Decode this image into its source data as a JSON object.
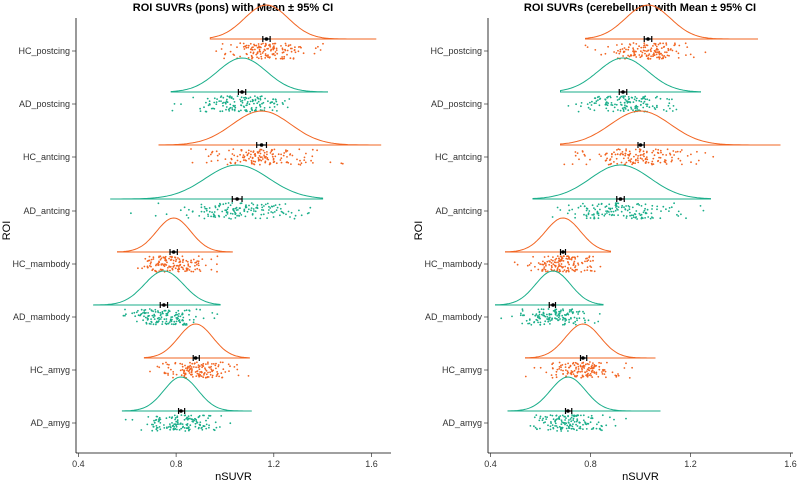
{
  "colors": {
    "HC": "#F26522",
    "AD": "#1AAE8A",
    "mean": "#000000"
  },
  "chart_data": [
    {
      "type": "raincloud",
      "title": "ROI SUVRs (pons) with Mean ± 95% CI",
      "xlabel": "nSUVR",
      "ylabel": "ROI",
      "xlim": [
        0.39,
        1.68
      ],
      "xticks": [
        0.4,
        0.8,
        1.2,
        1.6
      ],
      "xtick_labels": [
        "0.4",
        "0.8",
        "1.2",
        "1.6"
      ],
      "categories": [
        "HC_postcing",
        "AD_postcing",
        "HC_antcing",
        "AD_antcing",
        "HC_mambody",
        "AD_mambody",
        "HC_amyg",
        "AD_amyg"
      ],
      "groups": [
        "HC",
        "AD",
        "HC",
        "AD",
        "HC",
        "AD",
        "HC",
        "AD"
      ],
      "series": [
        {
          "name": "HC_postcing",
          "mean": 1.17,
          "ci": [
            1.155,
            1.185
          ],
          "sd": 0.09,
          "range": [
            0.94,
            1.62
          ]
        },
        {
          "name": "AD_postcing",
          "mean": 1.07,
          "ci": [
            1.055,
            1.085
          ],
          "sd": 0.1,
          "range": [
            0.78,
            1.42
          ]
        },
        {
          "name": "HC_antcing",
          "mean": 1.15,
          "ci": [
            1.13,
            1.17
          ],
          "sd": 0.12,
          "range": [
            0.73,
            1.64
          ]
        },
        {
          "name": "AD_antcing",
          "mean": 1.05,
          "ci": [
            1.03,
            1.07
          ],
          "sd": 0.13,
          "range": [
            0.53,
            1.4
          ]
        },
        {
          "name": "HC_mambody",
          "mean": 0.79,
          "ci": [
            0.775,
            0.805
          ],
          "sd": 0.07,
          "range": [
            0.56,
            1.03
          ]
        },
        {
          "name": "AD_mambody",
          "mean": 0.75,
          "ci": [
            0.735,
            0.765
          ],
          "sd": 0.08,
          "range": [
            0.46,
            0.98
          ]
        },
        {
          "name": "HC_amyg",
          "mean": 0.88,
          "ci": [
            0.87,
            0.895
          ],
          "sd": 0.07,
          "range": [
            0.67,
            1.1
          ]
        },
        {
          "name": "AD_amyg",
          "mean": 0.82,
          "ci": [
            0.81,
            0.835
          ],
          "sd": 0.07,
          "range": [
            0.58,
            1.11
          ]
        }
      ]
    },
    {
      "type": "raincloud",
      "title": "ROI SUVRs (cerebellum) with Mean ± 95% CI",
      "xlabel": "nSUVR",
      "ylabel": "ROI",
      "xlim": [
        0.39,
        1.61
      ],
      "xticks": [
        0.4,
        0.8,
        1.2,
        1.6
      ],
      "xtick_labels": [
        "0.4",
        "0.8",
        "1.2",
        "1.6"
      ],
      "categories": [
        "HC_postcing",
        "AD_postcing",
        "HC_antcing",
        "AD_antcing",
        "HC_mambody",
        "AD_mambody",
        "HC_amyg",
        "AD_amyg"
      ],
      "groups": [
        "HC",
        "AD",
        "HC",
        "AD",
        "HC",
        "AD",
        "HC",
        "AD"
      ],
      "series": [
        {
          "name": "HC_postcing",
          "mean": 1.03,
          "ci": [
            1.015,
            1.045
          ],
          "sd": 0.09,
          "range": [
            0.78,
            1.47
          ]
        },
        {
          "name": "AD_postcing",
          "mean": 0.93,
          "ci": [
            0.915,
            0.945
          ],
          "sd": 0.1,
          "range": [
            0.68,
            1.24
          ]
        },
        {
          "name": "HC_antcing",
          "mean": 1.0,
          "ci": [
            0.99,
            1.015
          ],
          "sd": 0.12,
          "range": [
            0.68,
            1.56
          ]
        },
        {
          "name": "AD_antcing",
          "mean": 0.92,
          "ci": [
            0.905,
            0.935
          ],
          "sd": 0.12,
          "range": [
            0.57,
            1.28
          ]
        },
        {
          "name": "HC_mambody",
          "mean": 0.69,
          "ci": [
            0.68,
            0.7
          ],
          "sd": 0.07,
          "range": [
            0.46,
            0.88
          ]
        },
        {
          "name": "AD_mambody",
          "mean": 0.65,
          "ci": [
            0.635,
            0.66
          ],
          "sd": 0.07,
          "range": [
            0.42,
            0.85
          ]
        },
        {
          "name": "HC_amyg",
          "mean": 0.77,
          "ci": [
            0.76,
            0.785
          ],
          "sd": 0.07,
          "range": [
            0.54,
            1.06
          ]
        },
        {
          "name": "AD_amyg",
          "mean": 0.71,
          "ci": [
            0.7,
            0.725
          ],
          "sd": 0.07,
          "range": [
            0.47,
            1.08
          ]
        }
      ]
    }
  ]
}
